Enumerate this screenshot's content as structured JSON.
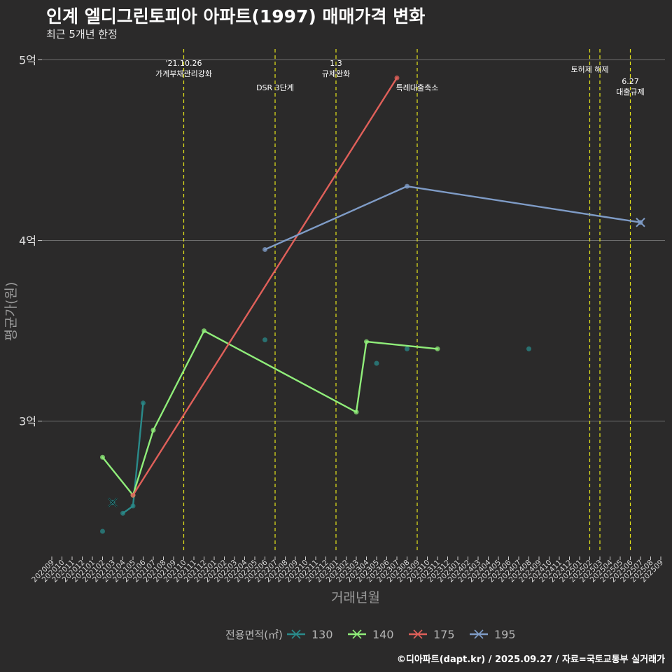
{
  "title": "인계 엘디그린토피아 아파트(1997) 매매가격 변화",
  "subtitle": "최근 5개년 한정",
  "caption": "©디아파트(dapt.kr) / 2025.09.27 / 자료=국토교통부 실거래가",
  "chart_data": {
    "type": "line",
    "xlabel": "거래년월",
    "ylabel": "평균가(원)",
    "ylim": [
      2.27,
      5.06
    ],
    "yticks": [
      {
        "value": 3,
        "label": "3억"
      },
      {
        "value": 4,
        "label": "4억"
      },
      {
        "value": 5,
        "label": "5억"
      }
    ],
    "x_categories": [
      "202009",
      "202010",
      "202011",
      "202012",
      "202101",
      "202102",
      "202103",
      "202104",
      "202105",
      "202106",
      "202107",
      "202108",
      "202109",
      "202110",
      "202111",
      "202112",
      "202201",
      "202202",
      "202203",
      "202204",
      "202205",
      "202206",
      "202207",
      "202208",
      "202209",
      "202210",
      "202211",
      "202212",
      "202301",
      "202302",
      "202303",
      "202304",
      "202305",
      "202306",
      "202307",
      "202308",
      "202309",
      "202310",
      "202311",
      "202312",
      "202401",
      "202402",
      "202403",
      "202404",
      "202405",
      "202406",
      "202407",
      "202408",
      "202409",
      "202410",
      "202411",
      "202412",
      "202501",
      "202502",
      "202503",
      "202504",
      "202505",
      "202506",
      "202507",
      "202508",
      "202509"
    ],
    "legend": {
      "title": "전용면적(㎡)",
      "position": "bottom"
    },
    "series": [
      {
        "name": "130",
        "color": "#2a8a8a",
        "end_marker": "202103",
        "points": [
          [
            "202102",
            2.39
          ],
          [
            "202103",
            2.55
          ],
          [
            "202104",
            2.49
          ],
          [
            "202105",
            2.53
          ],
          [
            "202106",
            3.1
          ],
          [
            "202206",
            3.45
          ],
          [
            "202305",
            3.32
          ],
          [
            "202308",
            3.4
          ],
          [
            "202408",
            3.4
          ]
        ],
        "line_segments": [
          [
            "202104",
            "202105",
            "202106"
          ]
        ]
      },
      {
        "name": "140",
        "color": "#90ee7a",
        "end_marker": null,
        "points": [
          [
            "202102",
            2.8
          ],
          [
            "202105",
            2.59
          ],
          [
            "202107",
            2.95
          ],
          [
            "202112",
            3.5
          ],
          [
            "202303",
            3.05
          ],
          [
            "202304",
            3.44
          ],
          [
            "202311",
            3.4
          ]
        ],
        "line_segments": [
          [
            "202102",
            "202105",
            "202107",
            "202112",
            "202303",
            "202304",
            "202311"
          ]
        ]
      },
      {
        "name": "175",
        "color": "#e0605a",
        "end_marker": null,
        "points": [
          [
            "202105",
            2.59
          ],
          [
            "202307",
            4.9
          ]
        ],
        "line_segments": [
          [
            "202105",
            "202307"
          ]
        ]
      },
      {
        "name": "195",
        "color": "#7f9cc7",
        "end_marker": "202507",
        "points": [
          [
            "202206",
            3.95
          ],
          [
            "202308",
            4.3
          ],
          [
            "202507",
            4.1
          ]
        ],
        "line_segments": [
          [
            "202206",
            "202308",
            "202507"
          ]
        ]
      }
    ],
    "events": [
      {
        "x": "202110",
        "lines": [
          "'21.10.26",
          "가계부채관리강화"
        ],
        "tier": "top"
      },
      {
        "x": "202207",
        "lines": [
          "DSR 3단계"
        ],
        "tier": "low"
      },
      {
        "x": "202301",
        "lines": [
          "1.3",
          "규제완화"
        ],
        "tier": "top"
      },
      {
        "x": "202309",
        "lines": [
          "특례대출축소"
        ],
        "tier": "low"
      },
      {
        "x": "202502",
        "lines": [
          "토허제 해제"
        ],
        "tier": "mid"
      },
      {
        "x": "202503",
        "lines": [],
        "tier": "mid"
      },
      {
        "x": "202506",
        "lines": [
          "6.27",
          "대출규제"
        ],
        "tier": "mid2"
      }
    ]
  }
}
